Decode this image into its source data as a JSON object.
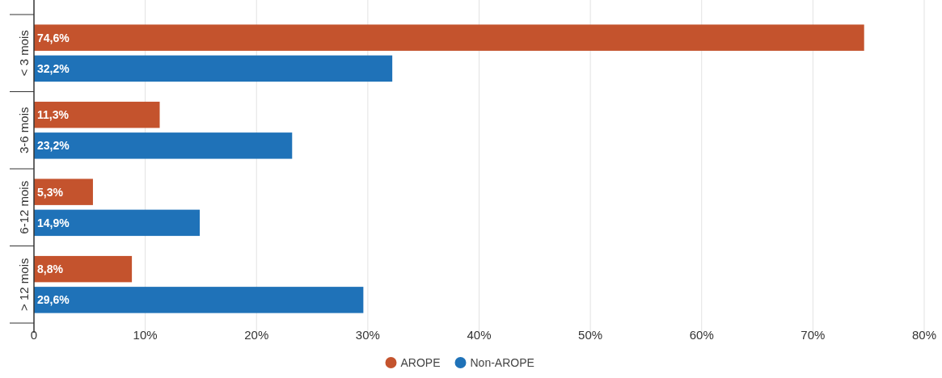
{
  "chart_data": {
    "type": "bar",
    "orientation": "horizontal",
    "categories": [
      "< 3 mois",
      "3-6 mois",
      "6-12 mois",
      "> 12 mois"
    ],
    "series": [
      {
        "name": "AROPE",
        "color": "#c4532d",
        "values": [
          74.6,
          11.3,
          5.3,
          8.8
        ],
        "value_labels": [
          "74,6%",
          "11,3%",
          "5,3%",
          "8,8%"
        ]
      },
      {
        "name": "Non-AROPE",
        "color": "#1f72b8",
        "values": [
          32.2,
          23.2,
          14.9,
          29.6
        ],
        "value_labels": [
          "32,2%",
          "23,2%",
          "14,9%",
          "29,6%"
        ]
      }
    ],
    "xlim": [
      0,
      80
    ],
    "xticks": [
      0,
      {
        "value": 10,
        "label": "10%"
      },
      {
        "value": 20,
        "label": "20%"
      },
      {
        "value": 30,
        "label": "30%"
      },
      {
        "value": 40,
        "label": "40%"
      },
      {
        "value": 50,
        "label": "50%"
      },
      {
        "value": 60,
        "label": "60%"
      },
      {
        "value": 70,
        "label": "70%"
      },
      {
        "value": 80,
        "label": "80%"
      }
    ],
    "grid": "x",
    "legend": "bottom"
  }
}
